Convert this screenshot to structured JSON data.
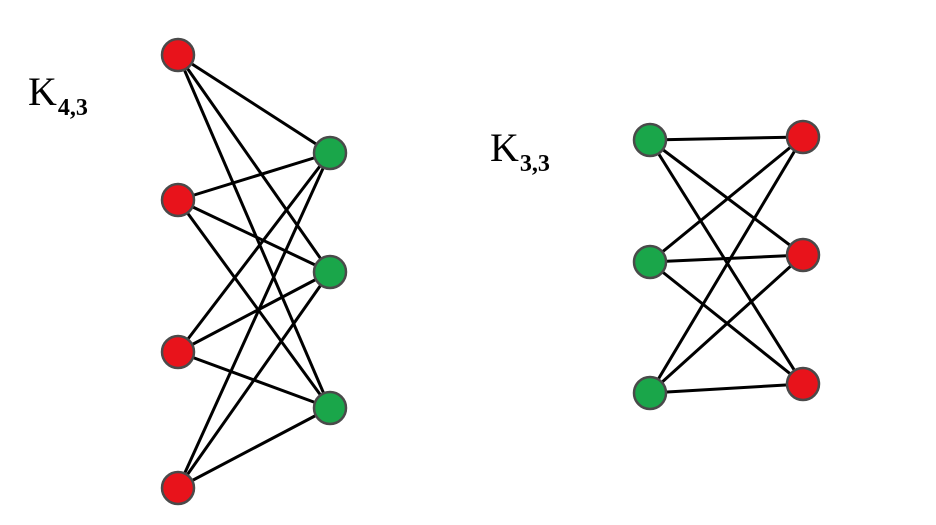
{
  "colors": {
    "red_vertex": "#e8131b",
    "green_vertex": "#1aa64a",
    "vertex_border": "#4a4a4a",
    "edge": "#000000"
  },
  "graphs": [
    {
      "id": "k43",
      "label": {
        "main": "K",
        "sub": "4,3"
      },
      "left_part": {
        "color": "red",
        "count": 4
      },
      "right_part": {
        "color": "green",
        "count": 3
      },
      "complete": true
    },
    {
      "id": "k33",
      "label": {
        "main": "K",
        "sub": "3,3"
      },
      "left_part": {
        "color": "green",
        "count": 3
      },
      "right_part": {
        "color": "red",
        "count": 3
      },
      "complete": true
    }
  ]
}
